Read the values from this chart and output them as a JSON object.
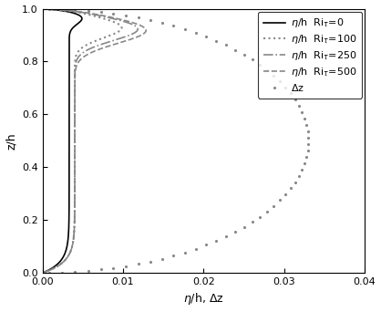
{
  "title": "",
  "xlabel": "$\\eta$/h, $\\Delta$z",
  "ylabel": "z/h",
  "xlim": [
    0,
    0.04
  ],
  "ylim": [
    0,
    1
  ],
  "xticks": [
    0,
    0.01,
    0.02,
    0.03,
    0.04
  ],
  "yticks": [
    0,
    0.2,
    0.4,
    0.6,
    0.8,
    1.0
  ],
  "background_color": "#ffffff",
  "line_color_ri0": "#000000",
  "line_color_others": "#888888",
  "legend_fontsize": 8,
  "tick_fontsize": 8,
  "axis_fontsize": 9
}
